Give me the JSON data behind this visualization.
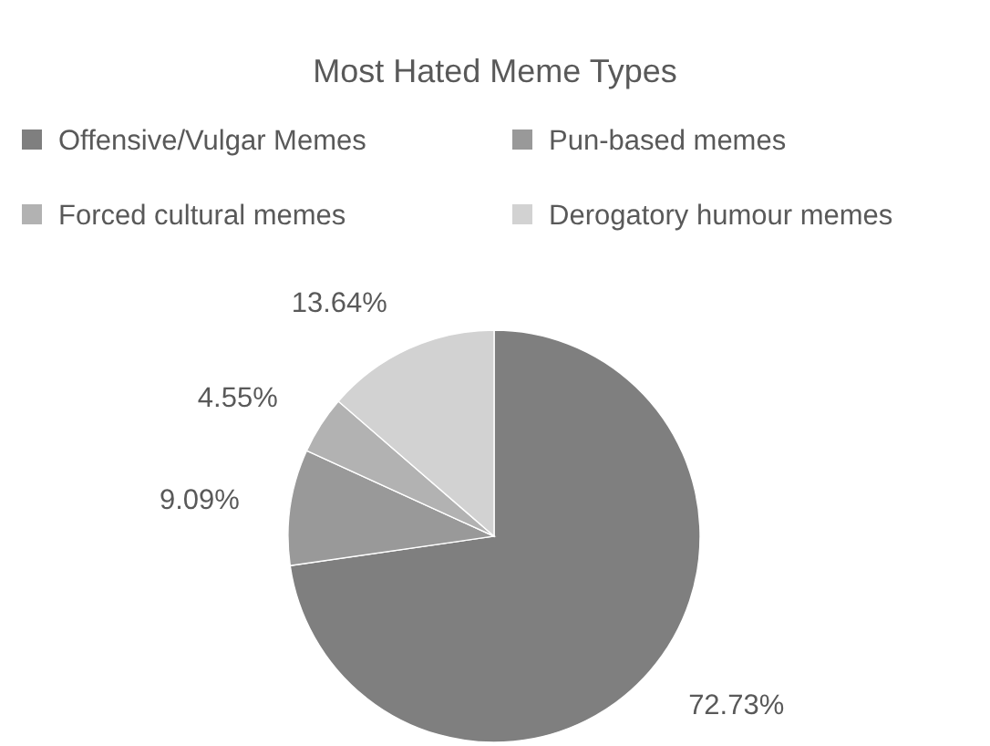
{
  "chart_data": {
    "type": "pie",
    "title": "Most Hated Meme Types",
    "categories": [
      "Offensive/Vulgar Memes",
      "Pun-based memes",
      "Forced cultural memes",
      "Derogatory humour memes"
    ],
    "values": [
      72.73,
      9.09,
      4.55,
      13.64
    ],
    "colors": [
      "#7f7f7f",
      "#999999",
      "#b2b2b2",
      "#d2d2d2"
    ],
    "value_labels": [
      "72.73%",
      "9.09%",
      "4.55%",
      "13.64%"
    ],
    "legend": "top"
  }
}
